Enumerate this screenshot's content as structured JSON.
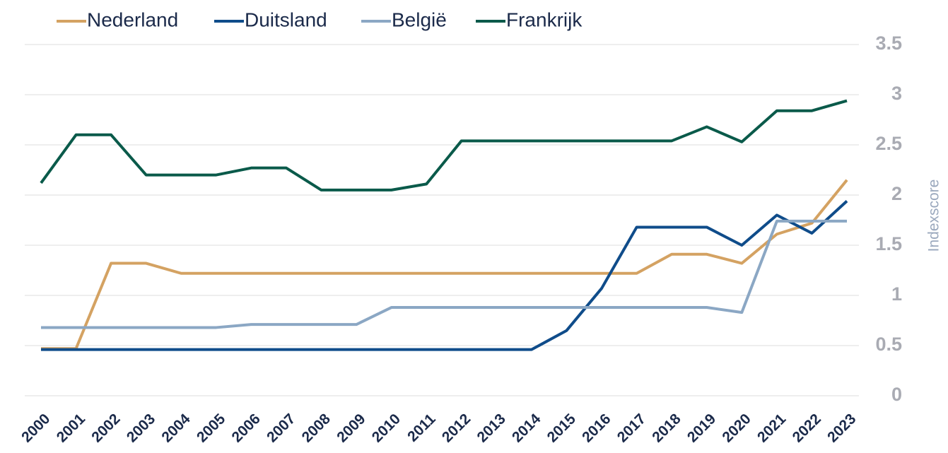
{
  "chart_data": {
    "type": "line",
    "y_label": "Indexscore",
    "categories": [
      "2000",
      "2001",
      "2002",
      "2003",
      "2004",
      "2005",
      "2006",
      "2007",
      "2008",
      "2009",
      "2010",
      "2011",
      "2012",
      "2013",
      "2014",
      "2015",
      "2016",
      "2017",
      "2018",
      "2019",
      "2020",
      "2021",
      "2022",
      "2023"
    ],
    "series": [
      {
        "name": "Nederland",
        "color": "#d4a262",
        "values": [
          0.47,
          0.47,
          1.32,
          1.32,
          1.22,
          1.22,
          1.22,
          1.22,
          1.22,
          1.22,
          1.22,
          1.22,
          1.22,
          1.22,
          1.22,
          1.22,
          1.22,
          1.22,
          1.41,
          1.41,
          1.32,
          1.61,
          1.72,
          2.15
        ]
      },
      {
        "name": "Duitsland",
        "color": "#0f4c8a",
        "values": [
          0.46,
          0.46,
          0.46,
          0.46,
          0.46,
          0.46,
          0.46,
          0.46,
          0.46,
          0.46,
          0.46,
          0.46,
          0.46,
          0.46,
          0.46,
          0.65,
          1.07,
          1.68,
          1.68,
          1.68,
          1.5,
          1.8,
          1.62,
          1.94
        ]
      },
      {
        "name": "België",
        "color": "#8ba7c4",
        "values": [
          0.68,
          0.68,
          0.68,
          0.68,
          0.68,
          0.68,
          0.71,
          0.71,
          0.71,
          0.71,
          0.88,
          0.88,
          0.88,
          0.88,
          0.88,
          0.88,
          0.88,
          0.88,
          0.88,
          0.88,
          0.83,
          1.74,
          1.74,
          1.74
        ]
      },
      {
        "name": "Frankrijk",
        "color": "#0a5a4a",
        "values": [
          2.12,
          2.6,
          2.6,
          2.2,
          2.2,
          2.2,
          2.27,
          2.27,
          2.05,
          2.05,
          2.05,
          2.11,
          2.54,
          2.54,
          2.54,
          2.54,
          2.54,
          2.54,
          2.54,
          2.68,
          2.53,
          2.84,
          2.84,
          2.94
        ]
      }
    ],
    "ylim": [
      0,
      3.5
    ],
    "yticks": [
      0,
      0.5,
      1,
      1.5,
      2,
      2.5,
      3,
      3.5
    ],
    "grid": true,
    "legend": "top-left"
  }
}
